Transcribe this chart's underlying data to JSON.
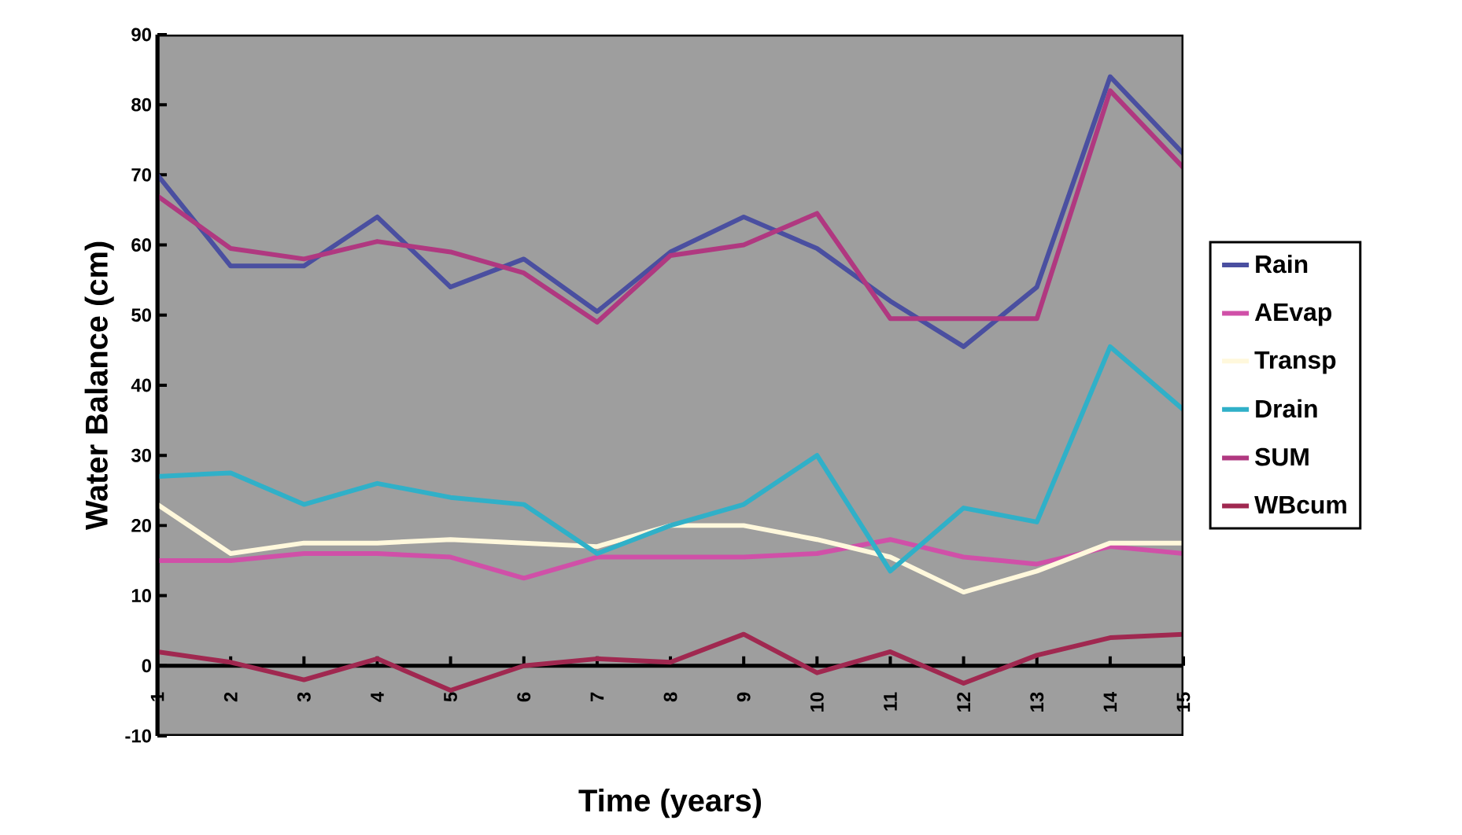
{
  "chart_data": {
    "type": "line",
    "xlabel": "Time (years)",
    "ylabel": "Water Balance (cm)",
    "categories": [
      "1",
      "2",
      "3",
      "4",
      "5",
      "6",
      "7",
      "8",
      "9",
      "10",
      "11",
      "12",
      "13",
      "14",
      "15"
    ],
    "ylim": [
      -10,
      90
    ],
    "yticks": [
      -10,
      0,
      10,
      20,
      30,
      40,
      50,
      60,
      70,
      80,
      90
    ],
    "legend": "right",
    "marker": "none",
    "line_style": "solid",
    "series": [
      {
        "name": "Rain",
        "color": "#4a4fa0",
        "values": [
          70,
          57,
          57,
          64,
          54,
          58,
          50.5,
          59,
          64,
          59.5,
          52,
          45.5,
          54,
          84,
          73
        ]
      },
      {
        "name": "AEvap",
        "color": "#d050a8",
        "values": [
          15,
          15,
          16,
          16,
          15.5,
          12.5,
          15.5,
          15.5,
          15.5,
          16,
          18,
          15.5,
          14.5,
          17,
          16
        ]
      },
      {
        "name": "Transp",
        "color": "#fff8dc",
        "values": [
          23,
          16,
          17.5,
          17.5,
          18,
          17.5,
          17,
          20,
          20,
          18,
          15.5,
          10.5,
          13.5,
          17.5,
          17.5
        ]
      },
      {
        "name": "Drain",
        "color": "#30b0c8",
        "values": [
          27,
          27.5,
          23,
          26,
          24,
          23,
          16,
          20,
          23,
          30,
          13.5,
          22.5,
          20.5,
          45.5,
          36.5
        ]
      },
      {
        "name": "SUM",
        "color": "#b03880",
        "values": [
          67,
          59.5,
          58,
          60.5,
          59,
          56,
          49,
          58.5,
          60,
          64.5,
          49.5,
          49.5,
          49.5,
          82,
          71
        ]
      },
      {
        "name": "WBcum",
        "color": "#a02850",
        "values": [
          2,
          0.5,
          -2,
          1,
          -3.5,
          0,
          1,
          0.5,
          4.5,
          -1,
          2,
          -2.5,
          1.5,
          4,
          4.5
        ]
      }
    ]
  }
}
